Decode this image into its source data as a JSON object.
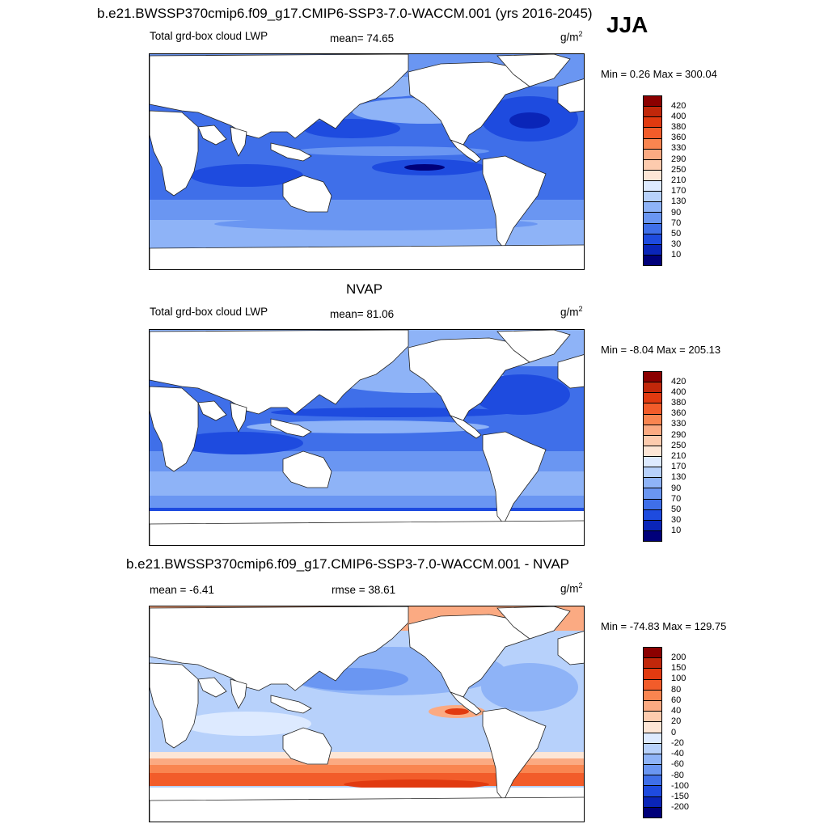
{
  "season": "JJA",
  "panel1": {
    "title": "b.e21.BWSSP370cmip6.f09_g17.CMIP6-SSP3-7.0-WACCM.001 (yrs 2016-2045)",
    "variable": "Total grd-box cloud LWP",
    "stat": "mean=  74.65",
    "units_base": "g/m",
    "units_exp": "2",
    "minmax": "Min =   0.26 Max = 300.04"
  },
  "panel2": {
    "title": "NVAP",
    "variable": "Total grd-box cloud LWP",
    "stat": "mean=  81.06",
    "units_base": "g/m",
    "units_exp": "2",
    "minmax": "Min =  -8.04 Max = 205.13"
  },
  "panel3": {
    "title": "b.e21.BWSSP370cmip6.f09_g17.CMIP6-SSP3-7.0-WACCM.001 - NVAP",
    "stat_left": "mean =  -6.41",
    "stat_right": "rmse =  38.61",
    "units_base": "g/m",
    "units_exp": "2",
    "minmax": "Min = -74.83 Max = 129.75"
  },
  "colorbar_lwp": {
    "labels": [
      "420",
      "400",
      "380",
      "360",
      "330",
      "290",
      "250",
      "210",
      "170",
      "130",
      "90",
      "70",
      "50",
      "30",
      "10"
    ],
    "colors": [
      "#8b0000",
      "#c1270a",
      "#e13a10",
      "#f25c2a",
      "#f98550",
      "#fbaa82",
      "#fdcbae",
      "#fde6d6",
      "#ddeaff",
      "#b7d1fb",
      "#8eb3f7",
      "#6a96f2",
      "#3f6fe9",
      "#1e4bdf",
      "#0a25b8",
      "#00007a"
    ]
  },
  "colorbar_diff": {
    "labels": [
      "200",
      "150",
      "100",
      "80",
      "60",
      "40",
      "20",
      "0",
      "-20",
      "-40",
      "-60",
      "-80",
      "-100",
      "-150",
      "-200"
    ],
    "colors": [
      "#8b0000",
      "#c1270a",
      "#e13a10",
      "#f25c2a",
      "#f98550",
      "#fbaa82",
      "#fdcbae",
      "#fde6d6",
      "#ddeaff",
      "#b7d1fb",
      "#8eb3f7",
      "#6a96f2",
      "#3f6fe9",
      "#1e4bdf",
      "#0a25b8",
      "#00007a"
    ]
  }
}
